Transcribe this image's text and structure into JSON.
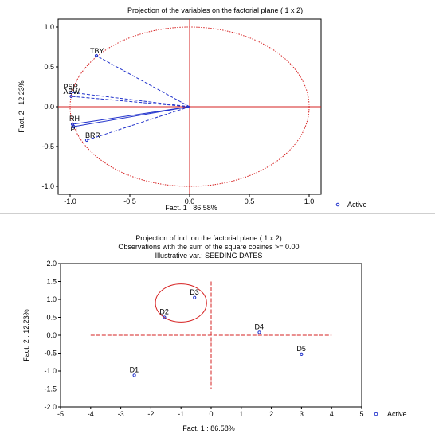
{
  "chart_data": [
    {
      "type": "scatter",
      "title": "Projection of the variables on the factorial plane ( 1 x 2)",
      "xlabel": "Fact. 1  : 86.58%",
      "ylabel": "Fact. 2 : 12.23%",
      "xlim": [
        -1.0,
        1.0
      ],
      "ylim": [
        -1.0,
        1.0
      ],
      "x_ticks": [
        "-1.0",
        "-0.5",
        "0.0",
        "0.5",
        "1.0"
      ],
      "y_ticks": [
        "1.0",
        "0.5",
        "0.0",
        "-0.5",
        "-1.0"
      ],
      "legend": {
        "label": "Active",
        "placement": "bottom-right"
      },
      "unit_circle": true,
      "points": [
        {
          "label": "TBY",
          "x": -0.78,
          "y": 0.64
        },
        {
          "label": "PSR",
          "x": -0.99,
          "y": 0.18
        },
        {
          "label": "ABW",
          "x": -0.99,
          "y": 0.13
        },
        {
          "label": "RH",
          "x": -0.98,
          "y": -0.22
        },
        {
          "label": "PL",
          "x": -0.97,
          "y": -0.25
        },
        {
          "label": "BRR",
          "x": -0.86,
          "y": -0.42
        }
      ],
      "colors": {
        "axes": "#d62020",
        "vectors": "#2233cc",
        "points": "#2233cc"
      }
    },
    {
      "type": "scatter",
      "title": "Projection of ind. on the factorial plane ( 1 x 2)",
      "subtitle": "Observations with the sum of the square cosines >= 0.00",
      "subtitle2": "Illustrative var.: SEEDING DATES",
      "xlabel": "Fact. 1 : 86.58%",
      "ylabel": "Fact. 2 : 12.23%",
      "xlim": [
        -5,
        5
      ],
      "ylim": [
        -2.0,
        2.0
      ],
      "x_ticks": [
        "-5",
        "-4",
        "-3",
        "-2",
        "-1",
        "0",
        "1",
        "2",
        "3",
        "4",
        "5"
      ],
      "y_ticks": [
        "2.0",
        "1.5",
        "1.0",
        "0.5",
        "0.0",
        "-0.5",
        "-1.0",
        "-1.5",
        "-2.0"
      ],
      "legend": {
        "label": "Active",
        "placement": "bottom-right"
      },
      "points": [
        {
          "label": "D1",
          "x": -2.55,
          "y": -1.12
        },
        {
          "label": "D2",
          "x": -1.55,
          "y": 0.5
        },
        {
          "label": "D3",
          "x": -0.55,
          "y": 1.05
        },
        {
          "label": "D4",
          "x": 1.6,
          "y": 0.08
        },
        {
          "label": "D5",
          "x": 3.0,
          "y": -0.53
        }
      ],
      "cluster_circle": {
        "cx": -1.0,
        "cy": 0.9,
        "rx": 0.85,
        "ry": 0.53
      },
      "colors": {
        "axes": "#d62020",
        "points": "#2233cc"
      }
    }
  ]
}
